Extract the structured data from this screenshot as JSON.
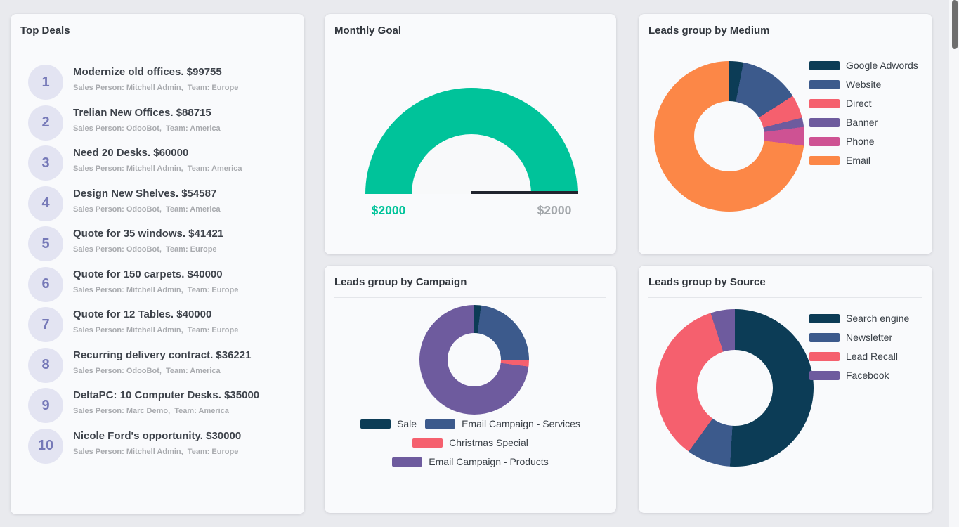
{
  "top_deals": {
    "title": "Top Deals",
    "deals": [
      {
        "rank": "1",
        "title": "Modernize old offices. $99755",
        "subtitle": "Sales Person: Mitchell Admin,  Team: Europe"
      },
      {
        "rank": "2",
        "title": "Trelian New Offices. $88715",
        "subtitle": "Sales Person: OdooBot,  Team: America"
      },
      {
        "rank": "3",
        "title": "Need 20 Desks. $60000",
        "subtitle": "Sales Person: Mitchell Admin,  Team: America"
      },
      {
        "rank": "4",
        "title": "Design New Shelves. $54587",
        "subtitle": "Sales Person: OdooBot,  Team: America"
      },
      {
        "rank": "5",
        "title": "Quote for 35 windows. $41421",
        "subtitle": "Sales Person: OdooBot,  Team: Europe"
      },
      {
        "rank": "6",
        "title": "Quote for 150 carpets. $40000",
        "subtitle": "Sales Person: Mitchell Admin,  Team: Europe"
      },
      {
        "rank": "7",
        "title": "Quote for 12 Tables. $40000",
        "subtitle": "Sales Person: Mitchell Admin,  Team: Europe"
      },
      {
        "rank": "8",
        "title": "Recurring delivery contract. $36221",
        "subtitle": "Sales Person: OdooBot,  Team: America"
      },
      {
        "rank": "9",
        "title": "DeltaPC: 10 Computer Desks. $35000",
        "subtitle": "Sales Person: Marc Demo,  Team: America"
      },
      {
        "rank": "10",
        "title": "Nicole Ford's opportunity. $30000",
        "subtitle": "Sales Person: Mitchell Admin,  Team: Europe"
      }
    ]
  },
  "chart_data": [
    {
      "type": "gauge",
      "title": "Monthly Goal",
      "value": 2000,
      "max": 2000,
      "value_label": "$2000",
      "max_label": "$2000",
      "percent": 100,
      "fill_color": "#00c39a",
      "track_color": "#e4e6ea",
      "target_line_color": "#20242e",
      "value_label_color": "#00c39a",
      "max_label_color": "#a3a7ab"
    },
    {
      "type": "pie",
      "donut": true,
      "title": "Leads group by Medium",
      "categories": [
        "Google Adwords",
        "Website",
        "Direct",
        "Banner",
        "Phone",
        "Email"
      ],
      "values": [
        3,
        13,
        5,
        2,
        4,
        73
      ],
      "colors": [
        "#0c3c56",
        "#3c5a8c",
        "#f5606e",
        "#6e5b9e",
        "#ce5293",
        "#fc8747"
      ],
      "legend_position": "right"
    },
    {
      "type": "pie",
      "donut": true,
      "title": "Leads group by Campaign",
      "categories": [
        "Sale",
        "Email Campaign - Services",
        "Christmas Special",
        "Email Campaign - Products"
      ],
      "values": [
        2,
        23,
        2,
        73
      ],
      "colors": [
        "#0c3c56",
        "#3c5a8c",
        "#f5606e",
        "#6e5b9e"
      ],
      "legend_position": "bottom",
      "legend_rows": [
        [
          0,
          1
        ],
        [
          2
        ],
        [
          3
        ]
      ]
    },
    {
      "type": "pie",
      "donut": true,
      "title": "Leads group by Source",
      "categories": [
        "Search engine",
        "Newsletter",
        "Lead Recall",
        "Facebook"
      ],
      "values": [
        51,
        9,
        35,
        5
      ],
      "colors": [
        "#0c3c56",
        "#3c5a8c",
        "#f5606e",
        "#6e5b9e"
      ],
      "legend_position": "right"
    }
  ]
}
